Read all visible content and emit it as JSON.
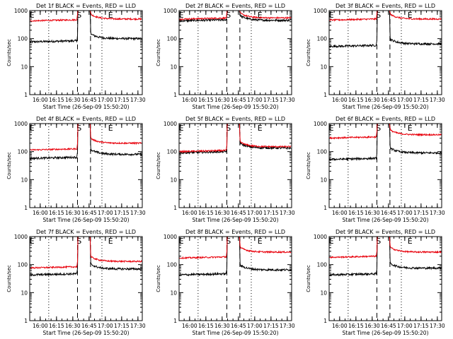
{
  "chart_data": [
    {
      "type": "line",
      "title": "Det 1f BLACK = Events, RED = LLD",
      "xlabel": "Start Time (26-Sep-09 15:50:20)",
      "ylabel": "Counts/sec",
      "yscale": "log",
      "ylim": [
        1,
        1000
      ],
      "xticks": [
        "16:00",
        "16:15",
        "16:30",
        "16:45",
        "17:00",
        "17:15",
        "17:30"
      ],
      "yticks": [
        "1",
        "10",
        "100",
        "1000"
      ],
      "markers": [
        "E",
        "S",
        "E"
      ],
      "series": [
        {
          "name": "Events",
          "color": "#000000",
          "before": 80,
          "after": 100
        },
        {
          "name": "LLD",
          "color": "#e8000b",
          "before": 450,
          "after": 500
        }
      ]
    },
    {
      "type": "line",
      "title": "Det 2f BLACK = Events, RED = LLD",
      "xlabel": "Start Time (26-Sep-09 15:50:20)",
      "ylabel": "Counts/sec",
      "yscale": "log",
      "ylim": [
        1,
        1000
      ],
      "xticks": [
        "16:00",
        "16:15",
        "16:30",
        "16:45",
        "17:00",
        "17:15",
        "17:30"
      ],
      "yticks": [
        "1",
        "10",
        "100",
        "1000"
      ],
      "markers": [
        "E",
        "S",
        "E"
      ],
      "series": [
        {
          "name": "Events",
          "color": "#000000",
          "before": 450,
          "after": 450
        },
        {
          "name": "LLD",
          "color": "#e8000b",
          "before": 520,
          "after": 550
        }
      ]
    },
    {
      "type": "line",
      "title": "Det 3f BLACK = Events, RED = LLD",
      "xlabel": "Start Time (26-Sep-09 15:50:20)",
      "ylabel": "Counts/sec",
      "yscale": "log",
      "ylim": [
        1,
        1000
      ],
      "xticks": [
        "16:00",
        "16:15",
        "16:30",
        "16:45",
        "17:00",
        "17:15",
        "17:30"
      ],
      "yticks": [
        "1",
        "10",
        "100",
        "1000"
      ],
      "markers": [
        "E",
        "S",
        "E"
      ],
      "series": [
        {
          "name": "Events",
          "color": "#000000",
          "before": 55,
          "after": 65
        },
        {
          "name": "LLD",
          "color": "#e8000b",
          "before": 480,
          "after": 500
        }
      ]
    },
    {
      "type": "line",
      "title": "Det 4f BLACK = Events, RED = LLD",
      "xlabel": "Start Time (26-Sep-09 15:50:20)",
      "ylabel": "Counts/sec",
      "yscale": "log",
      "ylim": [
        1,
        1000
      ],
      "xticks": [
        "16:00",
        "16:15",
        "16:30",
        "16:45",
        "17:00",
        "17:15",
        "17:30"
      ],
      "yticks": [
        "1",
        "10",
        "100",
        "1000"
      ],
      "markers": [
        "E",
        "S",
        "E"
      ],
      "series": [
        {
          "name": "Events",
          "color": "#000000",
          "before": 60,
          "after": 80
        },
        {
          "name": "LLD",
          "color": "#e8000b",
          "before": 120,
          "after": 200
        }
      ]
    },
    {
      "type": "line",
      "title": "Det 5f BLACK = Events, RED = LLD",
      "xlabel": "Start Time (26-Sep-09 15:50:20)",
      "ylabel": "Counts/sec",
      "yscale": "log",
      "ylim": [
        1,
        1000
      ],
      "xticks": [
        "16:00",
        "16:15",
        "16:30",
        "16:45",
        "17:00",
        "17:15",
        "17:30"
      ],
      "yticks": [
        "1",
        "10",
        "100",
        "1000"
      ],
      "markers": [
        "E",
        "S",
        "E"
      ],
      "series": [
        {
          "name": "Events",
          "color": "#000000",
          "before": 95,
          "after": 135
        },
        {
          "name": "LLD",
          "color": "#e8000b",
          "before": 105,
          "after": 150
        }
      ]
    },
    {
      "type": "line",
      "title": "Det 6f BLACK = Events, RED = LLD",
      "xlabel": "Start Time (26-Sep-09 15:50:20)",
      "ylabel": "Counts/sec",
      "yscale": "log",
      "ylim": [
        1,
        1000
      ],
      "xticks": [
        "16:00",
        "16:15",
        "16:30",
        "16:45",
        "17:00",
        "17:15",
        "17:30"
      ],
      "yticks": [
        "1",
        "10",
        "100",
        "1000"
      ],
      "markers": [
        "E",
        "S",
        "E"
      ],
      "series": [
        {
          "name": "Events",
          "color": "#000000",
          "before": 55,
          "after": 90
        },
        {
          "name": "LLD",
          "color": "#e8000b",
          "before": 320,
          "after": 400
        }
      ]
    },
    {
      "type": "line",
      "title": "Det 7f BLACK = Events, RED = LLD",
      "xlabel": "Start Time (26-Sep-09 15:50:20)",
      "ylabel": "Counts/sec",
      "yscale": "log",
      "ylim": [
        1,
        1000
      ],
      "xticks": [
        "16:00",
        "16:15",
        "16:30",
        "16:45",
        "17:00",
        "17:15",
        "17:30"
      ],
      "yticks": [
        "1",
        "10",
        "100",
        "1000"
      ],
      "markers": [
        "E",
        "S",
        "E"
      ],
      "series": [
        {
          "name": "Events",
          "color": "#000000",
          "before": 45,
          "after": 70
        },
        {
          "name": "LLD",
          "color": "#e8000b",
          "before": 80,
          "after": 130
        }
      ]
    },
    {
      "type": "line",
      "title": "Det 8f BLACK = Events, RED = LLD",
      "xlabel": "Start Time (26-Sep-09 15:50:20)",
      "ylabel": "Counts/sec",
      "yscale": "log",
      "ylim": [
        1,
        1000
      ],
      "xticks": [
        "16:00",
        "16:15",
        "16:30",
        "16:45",
        "17:00",
        "17:15",
        "17:30"
      ],
      "yticks": [
        "1",
        "10",
        "100",
        "1000"
      ],
      "markers": [
        "E",
        "S",
        "E"
      ],
      "series": [
        {
          "name": "Events",
          "color": "#000000",
          "before": 45,
          "after": 65
        },
        {
          "name": "LLD",
          "color": "#e8000b",
          "before": 180,
          "after": 280
        }
      ]
    },
    {
      "type": "line",
      "title": "Det 9f BLACK = Events, RED = LLD",
      "xlabel": "Start Time (26-Sep-09 15:50:20)",
      "ylabel": "Counts/sec",
      "yscale": "log",
      "ylim": [
        1,
        1000
      ],
      "xticks": [
        "16:00",
        "16:15",
        "16:30",
        "16:45",
        "17:00",
        "17:15",
        "17:30"
      ],
      "yticks": [
        "1",
        "10",
        "100",
        "1000"
      ],
      "markers": [
        "E",
        "S",
        "E"
      ],
      "series": [
        {
          "name": "Events",
          "color": "#000000",
          "before": 45,
          "after": 75
        },
        {
          "name": "LLD",
          "color": "#e8000b",
          "before": 190,
          "after": 280
        }
      ]
    }
  ]
}
